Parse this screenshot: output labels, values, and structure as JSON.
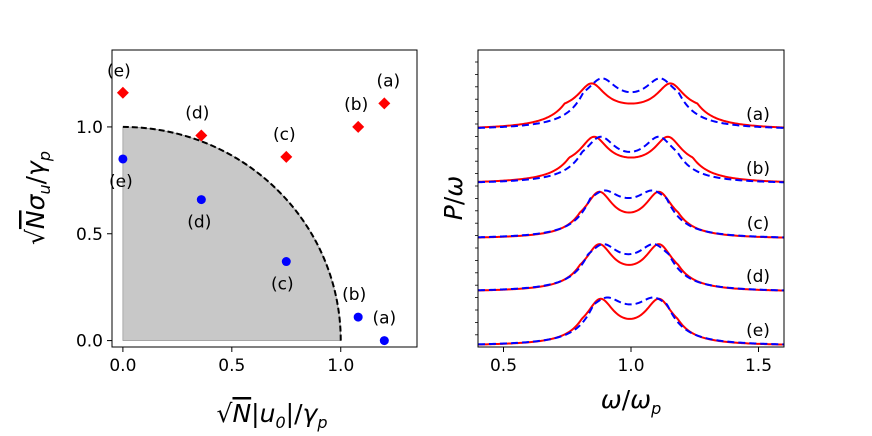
{
  "chart_data": [
    {
      "type": "scatter",
      "xlabel": "√N|u₀|/γp",
      "ylabel": "√Nσu/γp",
      "xlim": [
        -0.05,
        1.35
      ],
      "ylim": [
        -0.03,
        1.36
      ],
      "x_ticks": [
        0.0,
        0.5,
        1.0
      ],
      "x_tick_labels": [
        "0.0",
        "0.5",
        "1.0"
      ],
      "y_ticks": [
        0.0,
        0.5,
        1.0
      ],
      "y_tick_labels": [
        "0.0",
        "0.5",
        "1.0"
      ],
      "shaded_region": {
        "shape": "quarter-circle",
        "radius": 1.0,
        "fill": "#c8c8c8",
        "boundary_style": "dashed",
        "boundary_color": "#000000"
      },
      "series": [
        {
          "name": "red",
          "marker": "diamond",
          "color": "#ff0000",
          "points": [
            {
              "label": "(a)",
              "x": 1.2,
              "y": 1.11
            },
            {
              "label": "(b)",
              "x": 1.08,
              "y": 1.0
            },
            {
              "label": "(c)",
              "x": 0.75,
              "y": 0.86
            },
            {
              "label": "(d)",
              "x": 0.36,
              "y": 0.96
            },
            {
              "label": "(e)",
              "x": 0.0,
              "y": 1.16
            }
          ]
        },
        {
          "name": "blue",
          "marker": "circle",
          "color": "#0000ff",
          "points": [
            {
              "label": "(a)",
              "x": 1.2,
              "y": 0.0
            },
            {
              "label": "(b)",
              "x": 1.08,
              "y": 0.11
            },
            {
              "label": "(c)",
              "x": 0.75,
              "y": 0.37
            },
            {
              "label": "(d)",
              "x": 0.36,
              "y": 0.66
            },
            {
              "label": "(e)",
              "x": 0.0,
              "y": 0.85
            }
          ]
        }
      ]
    },
    {
      "type": "line",
      "xlabel": "ω/ωp",
      "ylabel": "P/ω",
      "xlim": [
        0.4,
        1.6
      ],
      "x_ticks": [
        0.5,
        1.0,
        1.5
      ],
      "x_tick_labels": [
        "0.5",
        "1.0",
        "1.5"
      ],
      "y_tick_labels_shown": false,
      "stack_labels": [
        "(a)",
        "(b)",
        "(c)",
        "(d)",
        "(e)"
      ],
      "stack_offsets": [
        4,
        3,
        2,
        1,
        0
      ],
      "series": [
        {
          "name": "solid",
          "style": "solid",
          "color": "#ff0000",
          "peaks": [
            [
              0.845,
              1.155
            ],
            [
              0.855,
              1.145
            ],
            [
              0.875,
              1.11
            ],
            [
              0.875,
              1.11
            ],
            [
              0.88,
              1.11
            ]
          ],
          "peak_heights": [
            0.74,
            0.75,
            0.75,
            0.76,
            0.75
          ],
          "dip_heights": [
            0.42,
            0.42,
            0.42,
            0.43,
            0.43
          ]
        },
        {
          "name": "dashed",
          "style": "dashed",
          "color": "#0000ff",
          "peaks": [
            [
              0.885,
              1.115
            ],
            [
              0.88,
              1.11
            ],
            [
              0.895,
              1.085
            ],
            [
              0.89,
              1.09
            ],
            [
              0.905,
              1.09
            ]
          ],
          "peak_heights": [
            0.82,
            0.75,
            0.77,
            0.76,
            0.77
          ],
          "dip_heights": [
            0.6,
            0.51,
            0.65,
            0.6,
            0.66
          ]
        }
      ]
    }
  ]
}
